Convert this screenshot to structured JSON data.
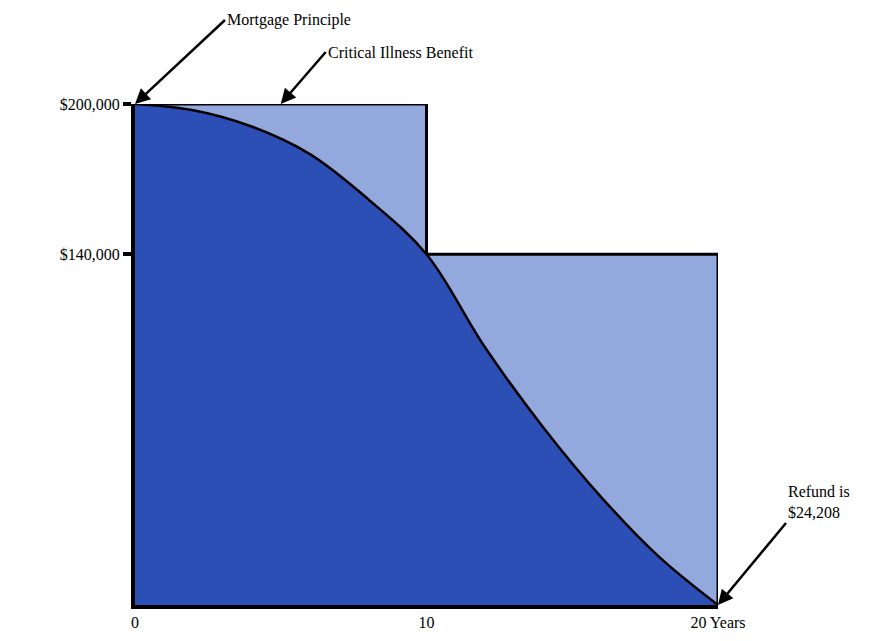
{
  "chart_data": {
    "type": "area",
    "series": [
      {
        "name": "Critical Illness Benefit",
        "x": [
          0,
          10,
          20
        ],
        "values": [
          200000,
          140000,
          140000
        ],
        "color": "#93a9de",
        "line_style": "step"
      },
      {
        "name": "Mortgage Principle",
        "x": [
          0,
          2,
          4,
          6,
          8,
          10,
          12,
          14,
          16,
          18,
          20
        ],
        "values": [
          200000,
          197500,
          191000,
          180000,
          162000,
          140000,
          103000,
          71000,
          43000,
          19000,
          0
        ],
        "color": "#2c4fb5",
        "line_style": "solid"
      }
    ],
    "xlim": [
      0,
      20
    ],
    "xticks": [
      0,
      10,
      {
        "value": 20,
        "label": "20 Years"
      }
    ],
    "ylim": [
      0,
      200000
    ],
    "yticks": [
      {
        "value": 140000,
        "label": "$140,000"
      },
      {
        "value": 200000,
        "label": "$200,000"
      }
    ],
    "annotations": [
      {
        "text": "Refund is $24,208",
        "x": 20,
        "y": 0
      }
    ],
    "grid": false
  }
}
